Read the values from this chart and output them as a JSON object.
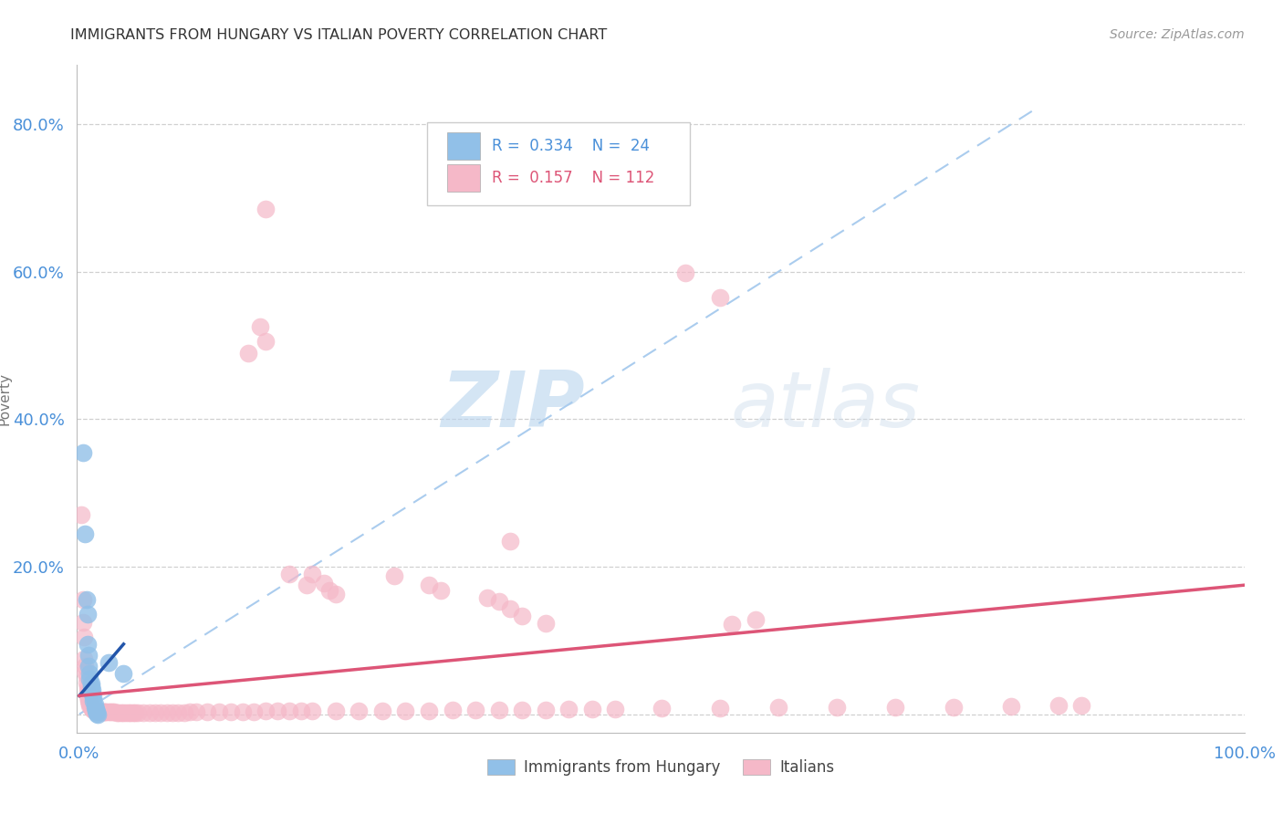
{
  "title": "IMMIGRANTS FROM HUNGARY VS ITALIAN POVERTY CORRELATION CHART",
  "source": "Source: ZipAtlas.com",
  "ylabel": "Poverty",
  "xlim": [
    -0.002,
    1.0
  ],
  "ylim": [
    -0.025,
    0.88
  ],
  "yticks": [
    0.0,
    0.2,
    0.4,
    0.6,
    0.8
  ],
  "xticks": [
    0.0,
    0.25,
    0.5,
    0.75,
    1.0
  ],
  "xtick_labels": [
    "0.0%",
    "",
    "",
    "",
    "100.0%"
  ],
  "ytick_labels": [
    "",
    "20.0%",
    "40.0%",
    "60.0%",
    "80.0%"
  ],
  "hungary_color": "#91c0e8",
  "italian_color": "#f5b8c8",
  "hungary_line_color": "#2255aa",
  "italian_line_color": "#dd5577",
  "dashed_line_color": "#aaccee",
  "watermark_zip": "ZIP",
  "watermark_atlas": "atlas",
  "hungary_points": [
    [
      0.003,
      0.355
    ],
    [
      0.005,
      0.245
    ],
    [
      0.006,
      0.155
    ],
    [
      0.007,
      0.135
    ],
    [
      0.007,
      0.095
    ],
    [
      0.008,
      0.08
    ],
    [
      0.008,
      0.065
    ],
    [
      0.009,
      0.055
    ],
    [
      0.009,
      0.048
    ],
    [
      0.01,
      0.042
    ],
    [
      0.01,
      0.038
    ],
    [
      0.011,
      0.033
    ],
    [
      0.011,
      0.028
    ],
    [
      0.012,
      0.023
    ],
    [
      0.012,
      0.018
    ],
    [
      0.013,
      0.013
    ],
    [
      0.013,
      0.01
    ],
    [
      0.014,
      0.007
    ],
    [
      0.014,
      0.005
    ],
    [
      0.015,
      0.003
    ],
    [
      0.015,
      0.001
    ],
    [
      0.016,
      0.0
    ],
    [
      0.025,
      0.07
    ],
    [
      0.038,
      0.055
    ]
  ],
  "italian_points": [
    [
      0.002,
      0.27
    ],
    [
      0.003,
      0.155
    ],
    [
      0.003,
      0.125
    ],
    [
      0.004,
      0.105
    ],
    [
      0.004,
      0.075
    ],
    [
      0.005,
      0.065
    ],
    [
      0.005,
      0.058
    ],
    [
      0.006,
      0.052
    ],
    [
      0.006,
      0.043
    ],
    [
      0.007,
      0.036
    ],
    [
      0.007,
      0.03
    ],
    [
      0.007,
      0.026
    ],
    [
      0.008,
      0.022
    ],
    [
      0.008,
      0.02
    ],
    [
      0.008,
      0.018
    ],
    [
      0.009,
      0.016
    ],
    [
      0.009,
      0.014
    ],
    [
      0.009,
      0.012
    ],
    [
      0.01,
      0.011
    ],
    [
      0.01,
      0.01
    ],
    [
      0.01,
      0.009
    ],
    [
      0.011,
      0.008
    ],
    [
      0.011,
      0.008
    ],
    [
      0.011,
      0.007
    ],
    [
      0.012,
      0.007
    ],
    [
      0.012,
      0.006
    ],
    [
      0.013,
      0.006
    ],
    [
      0.013,
      0.005
    ],
    [
      0.014,
      0.005
    ],
    [
      0.014,
      0.005
    ],
    [
      0.015,
      0.004
    ],
    [
      0.015,
      0.004
    ],
    [
      0.016,
      0.004
    ],
    [
      0.017,
      0.003
    ],
    [
      0.018,
      0.003
    ],
    [
      0.019,
      0.003
    ],
    [
      0.02,
      0.003
    ],
    [
      0.021,
      0.003
    ],
    [
      0.022,
      0.003
    ],
    [
      0.023,
      0.003
    ],
    [
      0.025,
      0.003
    ],
    [
      0.027,
      0.003
    ],
    [
      0.028,
      0.003
    ],
    [
      0.03,
      0.003
    ],
    [
      0.032,
      0.002
    ],
    [
      0.034,
      0.002
    ],
    [
      0.036,
      0.002
    ],
    [
      0.038,
      0.002
    ],
    [
      0.04,
      0.002
    ],
    [
      0.042,
      0.002
    ],
    [
      0.044,
      0.002
    ],
    [
      0.046,
      0.002
    ],
    [
      0.048,
      0.002
    ],
    [
      0.05,
      0.002
    ],
    [
      0.055,
      0.002
    ],
    [
      0.06,
      0.002
    ],
    [
      0.065,
      0.002
    ],
    [
      0.07,
      0.002
    ],
    [
      0.075,
      0.002
    ],
    [
      0.08,
      0.002
    ],
    [
      0.085,
      0.002
    ],
    [
      0.09,
      0.002
    ],
    [
      0.095,
      0.003
    ],
    [
      0.1,
      0.003
    ],
    [
      0.11,
      0.003
    ],
    [
      0.12,
      0.003
    ],
    [
      0.13,
      0.003
    ],
    [
      0.14,
      0.003
    ],
    [
      0.15,
      0.003
    ],
    [
      0.16,
      0.004
    ],
    [
      0.17,
      0.004
    ],
    [
      0.18,
      0.004
    ],
    [
      0.19,
      0.004
    ],
    [
      0.2,
      0.004
    ],
    [
      0.22,
      0.005
    ],
    [
      0.24,
      0.005
    ],
    [
      0.26,
      0.005
    ],
    [
      0.28,
      0.005
    ],
    [
      0.3,
      0.005
    ],
    [
      0.32,
      0.006
    ],
    [
      0.34,
      0.006
    ],
    [
      0.36,
      0.006
    ],
    [
      0.38,
      0.006
    ],
    [
      0.4,
      0.006
    ],
    [
      0.42,
      0.007
    ],
    [
      0.44,
      0.007
    ],
    [
      0.46,
      0.007
    ],
    [
      0.5,
      0.008
    ],
    [
      0.55,
      0.008
    ],
    [
      0.6,
      0.009
    ],
    [
      0.65,
      0.009
    ],
    [
      0.7,
      0.01
    ],
    [
      0.75,
      0.01
    ],
    [
      0.8,
      0.011
    ],
    [
      0.84,
      0.012
    ],
    [
      0.86,
      0.012
    ],
    [
      0.16,
      0.685
    ],
    [
      0.145,
      0.49
    ],
    [
      0.155,
      0.525
    ],
    [
      0.16,
      0.505
    ],
    [
      0.37,
      0.235
    ],
    [
      0.18,
      0.19
    ],
    [
      0.195,
      0.175
    ],
    [
      0.2,
      0.19
    ],
    [
      0.21,
      0.178
    ],
    [
      0.215,
      0.168
    ],
    [
      0.22,
      0.163
    ],
    [
      0.27,
      0.188
    ],
    [
      0.3,
      0.175
    ],
    [
      0.31,
      0.168
    ],
    [
      0.35,
      0.158
    ],
    [
      0.36,
      0.153
    ],
    [
      0.37,
      0.143
    ],
    [
      0.38,
      0.133
    ],
    [
      0.4,
      0.123
    ],
    [
      0.52,
      0.598
    ],
    [
      0.55,
      0.565
    ],
    [
      0.56,
      0.122
    ],
    [
      0.58,
      0.128
    ]
  ],
  "hungary_trendline": [
    [
      0.0,
      0.025
    ],
    [
      0.038,
      0.095
    ]
  ],
  "italian_trendline": [
    [
      0.0,
      0.025
    ],
    [
      1.0,
      0.175
    ]
  ],
  "dashed_line": [
    [
      0.0,
      0.0
    ],
    [
      0.82,
      0.82
    ]
  ]
}
